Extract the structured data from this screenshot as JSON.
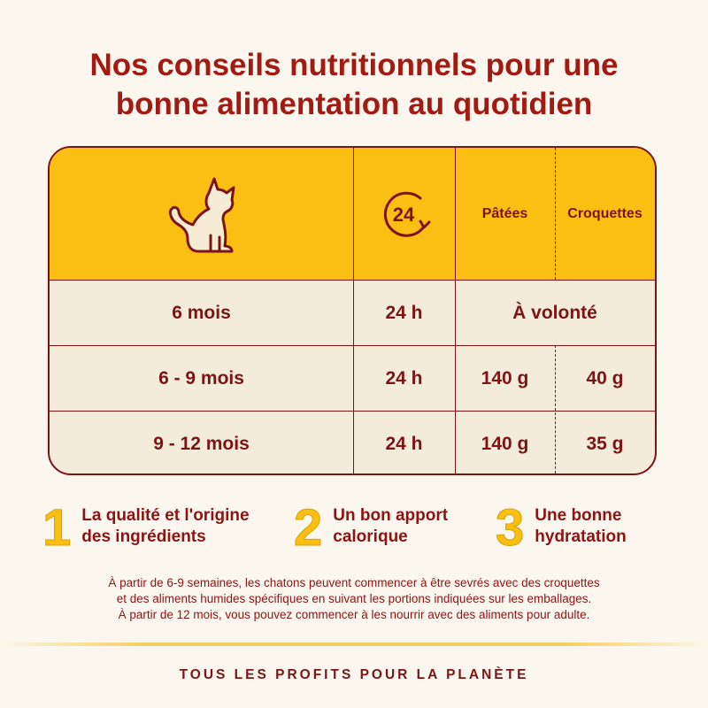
{
  "title": {
    "line1": "Nos conseils nutritionnels pour une",
    "line2": "bonne alimentation au quotidien"
  },
  "table": {
    "header": {
      "cat_icon": "cat-icon",
      "clock_icon": "24h-clock-icon",
      "clock_label": "24",
      "col_patees": "Pâtées",
      "col_croquettes": "Croquettes"
    },
    "rows": [
      {
        "age": "6 mois",
        "duration": "24 h",
        "merged": "À volonté"
      },
      {
        "age": "6 - 9 mois",
        "duration": "24 h",
        "patees": "140 g",
        "croquettes": "40 g"
      },
      {
        "age": "9 - 12 mois",
        "duration": "24 h",
        "patees": "140 g",
        "croquettes": "35 g"
      }
    ]
  },
  "tips": [
    {
      "number": "1",
      "line1": "La qualité et l'origine",
      "line2": "des ingrédients"
    },
    {
      "number": "2",
      "line1": "Un bon apport",
      "line2": "calorique"
    },
    {
      "number": "3",
      "line1": "Une bonne",
      "line2": "hydratation"
    }
  ],
  "note": {
    "line1": "À partir de 6-9 semaines, les chatons peuvent commencer à être sevrés avec des croquettes",
    "line2": "et des aliments humides spécifiques en suivant les portions indiquées sur les emballages.",
    "line3": "À partir de 12 mois, vous pouvez commencer à les nourrir avec des aliments pour adulte."
  },
  "footer": "TOUS LES PROFITS POUR LA PLANÈTE",
  "colors": {
    "background": "#fbf7ee",
    "accent_yellow": "#fbbf14",
    "text_dark_red": "#8c1413",
    "row_bg": "#f4ecda"
  }
}
